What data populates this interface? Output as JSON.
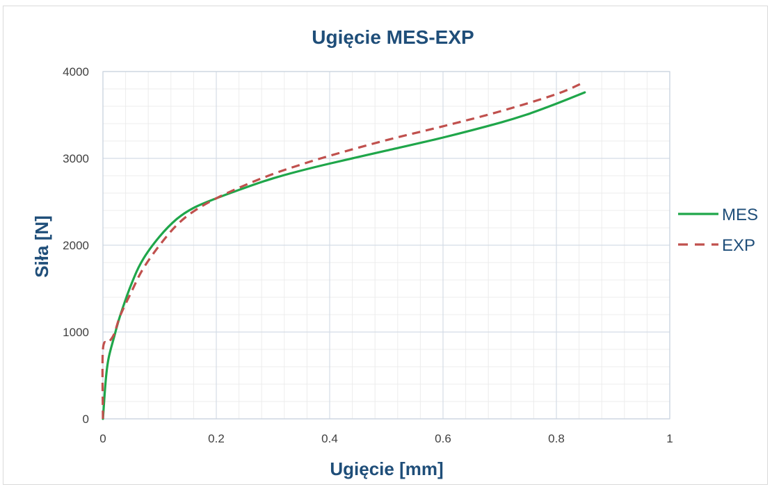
{
  "chart_data": {
    "type": "line",
    "title": "Ugięcie MES-EXP",
    "xlabel": "Ugięcie [mm]",
    "ylabel": "Siła [N]",
    "xlim": [
      0,
      1
    ],
    "ylim": [
      0,
      4000
    ],
    "x_ticks": [
      "0",
      "0.2",
      "0.4",
      "0.6",
      "0.8",
      "1"
    ],
    "y_ticks": [
      "0",
      "1000",
      "2000",
      "3000",
      "4000"
    ],
    "grid": true,
    "legend_position": "right",
    "series": [
      {
        "name": "MES",
        "color": "#1fa64a",
        "style": "solid",
        "points": [
          [
            0,
            0
          ],
          [
            0.005,
            450
          ],
          [
            0.01,
            700
          ],
          [
            0.02,
            950
          ],
          [
            0.03,
            1180
          ],
          [
            0.05,
            1550
          ],
          [
            0.07,
            1830
          ],
          [
            0.1,
            2100
          ],
          [
            0.13,
            2300
          ],
          [
            0.16,
            2430
          ],
          [
            0.2,
            2540
          ],
          [
            0.25,
            2660
          ],
          [
            0.3,
            2770
          ],
          [
            0.35,
            2860
          ],
          [
            0.4,
            2940
          ],
          [
            0.5,
            3090
          ],
          [
            0.6,
            3240
          ],
          [
            0.7,
            3410
          ],
          [
            0.75,
            3510
          ],
          [
            0.8,
            3630
          ],
          [
            0.85,
            3760
          ]
        ]
      },
      {
        "name": "EXP",
        "color": "#c0504d",
        "style": "dashed",
        "points": [
          [
            0,
            0
          ],
          [
            0,
            800
          ],
          [
            0.01,
            880
          ],
          [
            0.02,
            980
          ],
          [
            0.03,
            1180
          ],
          [
            0.05,
            1460
          ],
          [
            0.07,
            1720
          ],
          [
            0.1,
            2000
          ],
          [
            0.13,
            2230
          ],
          [
            0.16,
            2390
          ],
          [
            0.2,
            2540
          ],
          [
            0.25,
            2690
          ],
          [
            0.3,
            2820
          ],
          [
            0.35,
            2930
          ],
          [
            0.4,
            3030
          ],
          [
            0.5,
            3210
          ],
          [
            0.6,
            3370
          ],
          [
            0.7,
            3540
          ],
          [
            0.8,
            3740
          ],
          [
            0.85,
            3880
          ]
        ]
      }
    ]
  }
}
